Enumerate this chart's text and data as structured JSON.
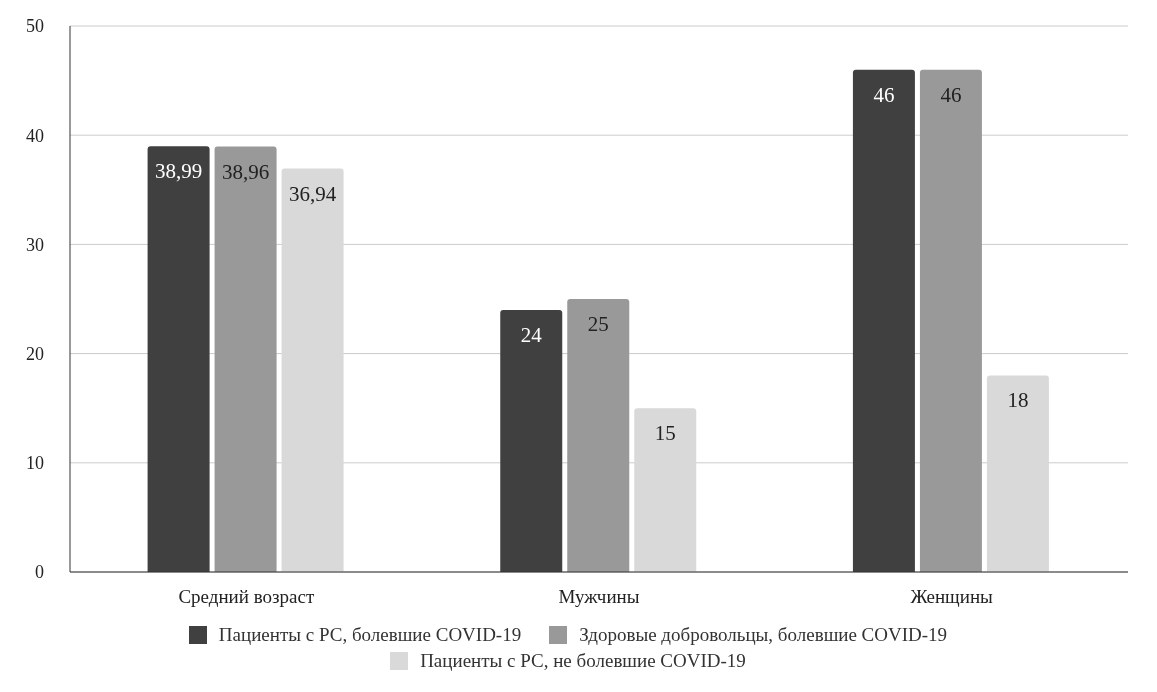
{
  "chart_data": {
    "type": "bar",
    "categories": [
      "Средний возраст",
      "Мужчины",
      "Женщины"
    ],
    "series": [
      {
        "name": "Пациенты с РС, болевшие COVID-19",
        "color": "#404040",
        "values": [
          38.99,
          24,
          46
        ],
        "value_labels": [
          "38,99",
          "24",
          "46"
        ]
      },
      {
        "name": "Здоровые добровольцы, болевшие COVID-19",
        "color": "#999999",
        "values": [
          38.96,
          25,
          46
        ],
        "value_labels": [
          "38,96",
          "25",
          "46"
        ]
      },
      {
        "name": "Пациенты с РС, не болевшие COVID-19",
        "color": "#d9d9d9",
        "values": [
          36.94,
          15,
          18
        ],
        "value_labels": [
          "36,94",
          "15",
          "18"
        ]
      }
    ],
    "ylim": [
      0,
      50
    ],
    "yticks": [
      0,
      10,
      20,
      30,
      40,
      50
    ],
    "grid": "y",
    "legend": "bottom"
  }
}
